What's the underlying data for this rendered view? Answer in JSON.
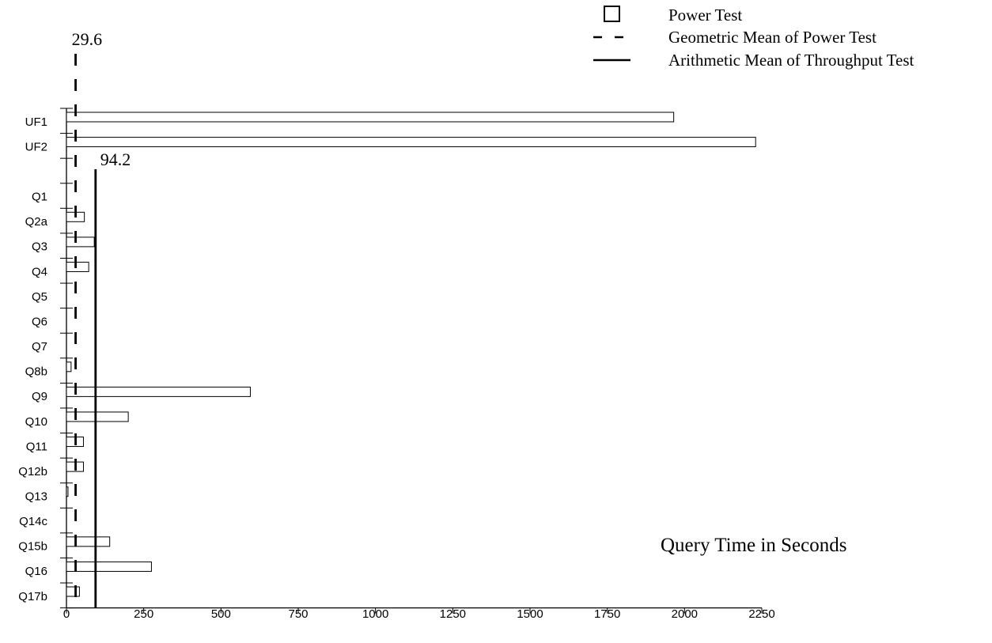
{
  "chart_data": {
    "type": "bar",
    "orientation": "horizontal",
    "categories": [
      "UF1",
      "UF2",
      "",
      "Q1",
      "Q2a",
      "Q3",
      "Q4",
      "Q5",
      "Q6",
      "Q7",
      "Q8b",
      "Q9",
      "Q10",
      "Q11",
      "Q12b",
      "Q13",
      "Q14c",
      "Q15b",
      "Q16",
      "Q17b"
    ],
    "series": [
      {
        "name": "Power Test",
        "values": [
          1965,
          2230,
          null,
          0,
          58,
          90,
          72,
          0,
          0,
          0,
          15,
          595,
          200,
          55,
          55,
          5,
          0,
          140,
          275,
          42
        ]
      }
    ],
    "reference_lines": [
      {
        "name": "Geometric Mean of Power Test",
        "value": 29.6,
        "label": "29.6",
        "style": "dashed"
      },
      {
        "name": "Arithmetic Mean of Throughput Test",
        "value": 94.2,
        "label": "94.2",
        "style": "solid"
      }
    ],
    "xlabel": "Query Time in Seconds",
    "ylabel": "",
    "xlim": [
      0,
      2250
    ],
    "xticks": [
      0,
      250,
      500,
      750,
      1000,
      1250,
      1500,
      1750,
      2000,
      2250
    ],
    "grid": false,
    "legend_position": "top-right",
    "legend": [
      "Power Test",
      "Geometric Mean of Power Test",
      "Arithmetic Mean of Throughput Test"
    ],
    "colors": {
      "bar_fill": "#ffffff",
      "stroke": "#000000"
    }
  }
}
